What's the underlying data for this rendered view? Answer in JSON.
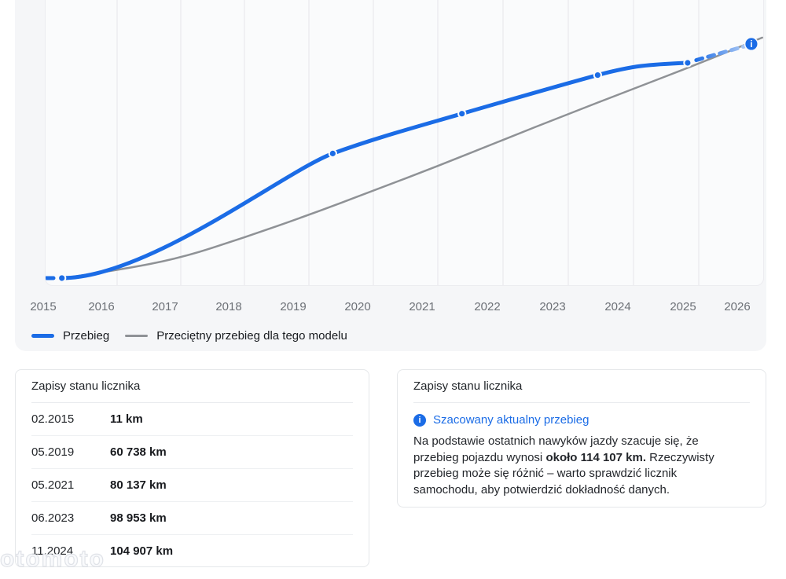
{
  "watermark": "otomoto",
  "chart": {
    "x_labels": [
      "2015",
      "2016",
      "2017",
      "2018",
      "2019",
      "2020",
      "2021",
      "2022",
      "2023",
      "2024",
      "2025",
      "2026"
    ],
    "legend": [
      {
        "label": "Przebieg",
        "color": "#1b6ce6"
      },
      {
        "label": "Przeciętny przebieg dla tego modelu",
        "color": "#8f9296"
      }
    ],
    "colors": {
      "line_blue": "#1b6ce6",
      "line_blue_faded": "#bdd4f6",
      "line_gray": "#8f9296",
      "grid": "#ededf0",
      "info_icon": "#1b6ce6"
    }
  },
  "chart_data": {
    "type": "line",
    "x_range": [
      2015,
      2026.2
    ],
    "y_unit": "km",
    "grid": "vertical-yearly",
    "legend_position": "bottom-left",
    "series": [
      {
        "name": "Przebieg",
        "points": [
          {
            "x": 2015.05,
            "y": 11,
            "label": "02.2015"
          },
          {
            "x": 2019.37,
            "y": 60738,
            "label": "05.2019"
          },
          {
            "x": 2021.37,
            "y": 80137,
            "label": "05.2021"
          },
          {
            "x": 2023.45,
            "y": 98953,
            "label": "06.2023"
          },
          {
            "x": 2024.83,
            "y": 104907,
            "label": "11.2024"
          }
        ],
        "estimated_point": {
          "x": 2025.97,
          "y": 114107,
          "style": "dashed-faded",
          "marker": "info-icon"
        }
      },
      {
        "name": "Przeciętny przebieg dla tego modelu",
        "points": [
          {
            "x": 2015.08,
            "y": 0
          },
          {
            "x": 2016,
            "y": 3800
          },
          {
            "x": 2017,
            "y": 9800
          },
          {
            "x": 2018,
            "y": 19800
          },
          {
            "x": 2019,
            "y": 30800
          },
          {
            "x": 2020,
            "y": 42600
          },
          {
            "x": 2021,
            "y": 54600
          },
          {
            "x": 2022,
            "y": 67400
          },
          {
            "x": 2023,
            "y": 80000
          },
          {
            "x": 2024,
            "y": 92300
          },
          {
            "x": 2025,
            "y": 104500
          },
          {
            "x": 2026.17,
            "y": 117200
          }
        ]
      }
    ]
  },
  "records_panel": {
    "title": "Zapisy stanu licznika",
    "rows": [
      {
        "date": "02.2015",
        "value": "11 km"
      },
      {
        "date": "05.2019",
        "value": "60 738 km"
      },
      {
        "date": "05.2021",
        "value": "80 137 km"
      },
      {
        "date": "06.2023",
        "value": "98 953 km"
      },
      {
        "date": "11.2024",
        "value": "104 907 km"
      }
    ]
  },
  "estimate_panel": {
    "title": "Zapisy stanu licznika",
    "info_icon": "i",
    "link_label": "Szacowany aktualny przebieg",
    "text_before": "Na podstawie ostatnich nawyków jazdy szacuje się, że przebieg pojazdu wynosi ",
    "text_bold": "około 114 107 km.",
    "text_after": " Rzeczywisty przebieg może się różnić – warto sprawdzić licznik samochodu, aby potwierdzić dokładność danych."
  }
}
